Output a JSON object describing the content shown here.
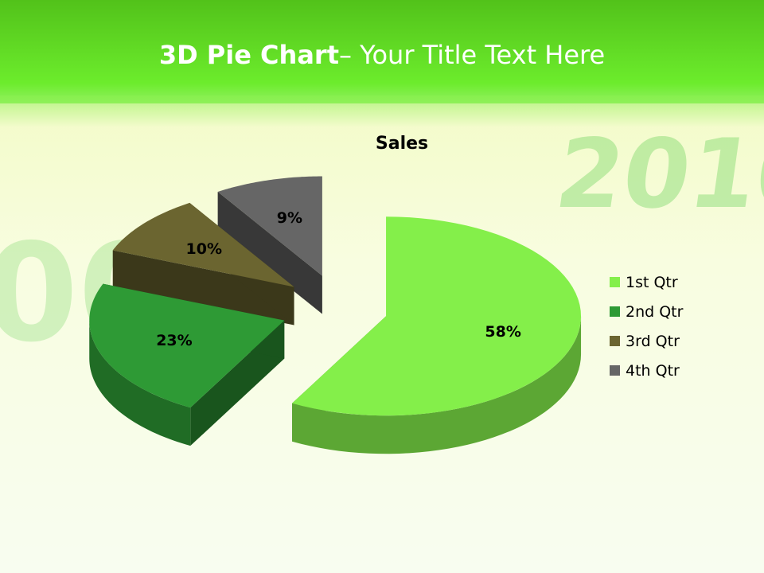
{
  "slide": {
    "title_bold": "3D Pie Chart",
    "title_rest": "– Your Title Text Here"
  },
  "chart_data": {
    "type": "pie",
    "style": "3d-exploded",
    "title": "Sales",
    "categories": [
      "1st Qtr",
      "2nd Qtr",
      "3rd Qtr",
      "4th Qtr"
    ],
    "values": [
      58,
      23,
      10,
      9
    ],
    "data_labels": [
      "58%",
      "23%",
      "10%",
      "9%"
    ],
    "colors": [
      "#84ef4a",
      "#2e9a35",
      "#6b6530",
      "#666666"
    ],
    "legend_position": "right"
  }
}
